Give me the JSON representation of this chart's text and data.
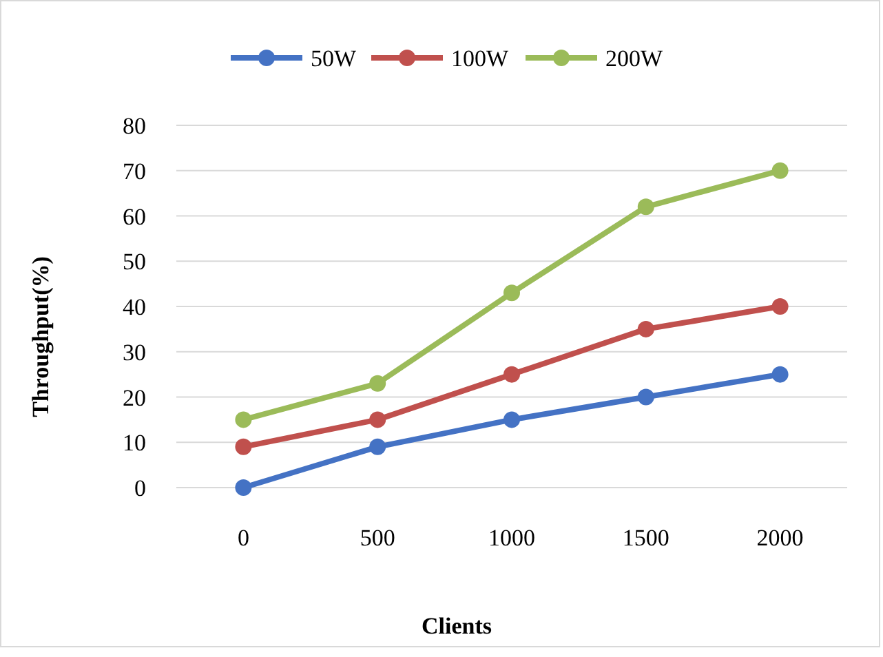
{
  "chart_data": {
    "type": "line",
    "xlabel": "Clients",
    "ylabel": "Throughput(%)",
    "categories": [
      "0",
      "500",
      "1000",
      "1500",
      "2000"
    ],
    "series": [
      {
        "name": "50W",
        "color": "#4472c4",
        "values": [
          0,
          9,
          15,
          20,
          25
        ]
      },
      {
        "name": "100W",
        "color": "#c0504d",
        "values": [
          9,
          15,
          25,
          35,
          40
        ]
      },
      {
        "name": "200W",
        "color": "#9bbb59",
        "values": [
          15,
          23,
          43,
          62,
          70
        ]
      }
    ],
    "ylim": [
      0,
      80
    ],
    "yticks": [
      0,
      10,
      20,
      30,
      40,
      50,
      60,
      70,
      80
    ],
    "grid": "y",
    "legend": "top",
    "marker": "circle",
    "line_style": "solid"
  }
}
